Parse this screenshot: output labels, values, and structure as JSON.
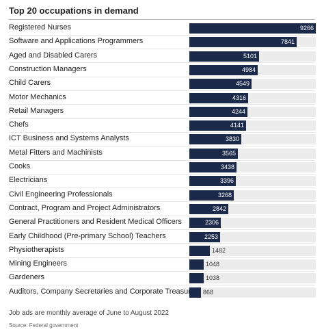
{
  "chart_data": {
    "type": "bar",
    "title": "Top 20 occupations in demand",
    "categories": [
      "Registered Nurses",
      "Software and Applications Programmers",
      "Aged and Disabled Carers",
      "Construction Managers",
      "Child Carers",
      "Motor Mechanics",
      "Retail Managers",
      "Chefs",
      "ICT Business and Systems Analysts",
      "Metal Fitters and Machinists",
      "Cooks",
      "Electricians",
      "Civil Engineering Professionals",
      "Contract, Program and Project Administrators",
      "General Practitioners and Resident Medical Officers",
      "Early Childhood (Pre-primary School) Teachers",
      "Physiotherapists",
      "Mining Engineers",
      "Gardeners",
      "Auditors, Company Secretaries and Corporate Treasurers"
    ],
    "values": [
      9266,
      7841,
      5101,
      4984,
      4549,
      4316,
      4244,
      4141,
      3830,
      3565,
      3438,
      3396,
      3268,
      2842,
      2306,
      2253,
      1482,
      1048,
      1038,
      868
    ],
    "xlim": [
      0,
      9266
    ],
    "orientation": "horizontal",
    "bar_color": "#1b2a4a",
    "track_color": "#ececec"
  },
  "footnote": "Job ads are monthly average of June to August 2022",
  "source": "Source: Federal government"
}
